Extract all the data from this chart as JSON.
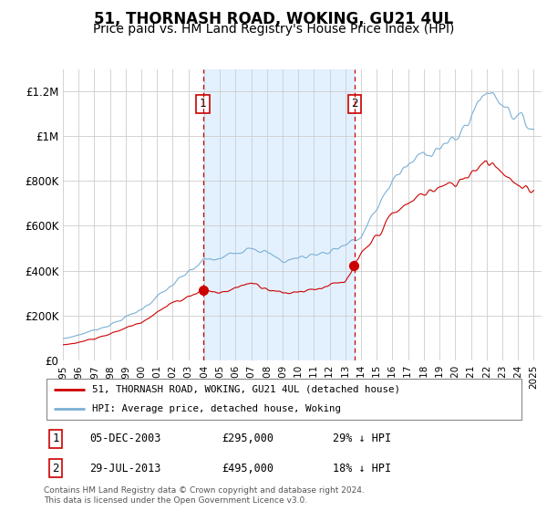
{
  "title": "51, THORNASH ROAD, WOKING, GU21 4UL",
  "subtitle": "Price paid vs. HM Land Registry's House Price Index (HPI)",
  "ylim": [
    0,
    1300000
  ],
  "yticks": [
    0,
    200000,
    400000,
    600000,
    800000,
    1000000,
    1200000
  ],
  "ytick_labels": [
    "£0",
    "£200K",
    "£400K",
    "£600K",
    "£800K",
    "£1M",
    "£1.2M"
  ],
  "grid_color": "#cccccc",
  "hpi_color": "#7ab0d4",
  "price_color": "#cc0000",
  "sale1_date": 2003.92,
  "sale1_price": 295000,
  "sale2_date": 2013.58,
  "sale2_price": 495000,
  "legend_entry1": "51, THORNASH ROAD, WOKING, GU21 4UL (detached house)",
  "legend_entry2": "HPI: Average price, detached house, Woking",
  "annotation1": [
    "1",
    "05-DEC-2003",
    "£295,000",
    "29% ↓ HPI"
  ],
  "annotation2": [
    "2",
    "29-JUL-2013",
    "£495,000",
    "18% ↓ HPI"
  ],
  "footer": "Contains HM Land Registry data © Crown copyright and database right 2024.\nThis data is licensed under the Open Government Licence v3.0.",
  "shade_color": "#ddeeff",
  "title_fontsize": 12,
  "subtitle_fontsize": 10
}
